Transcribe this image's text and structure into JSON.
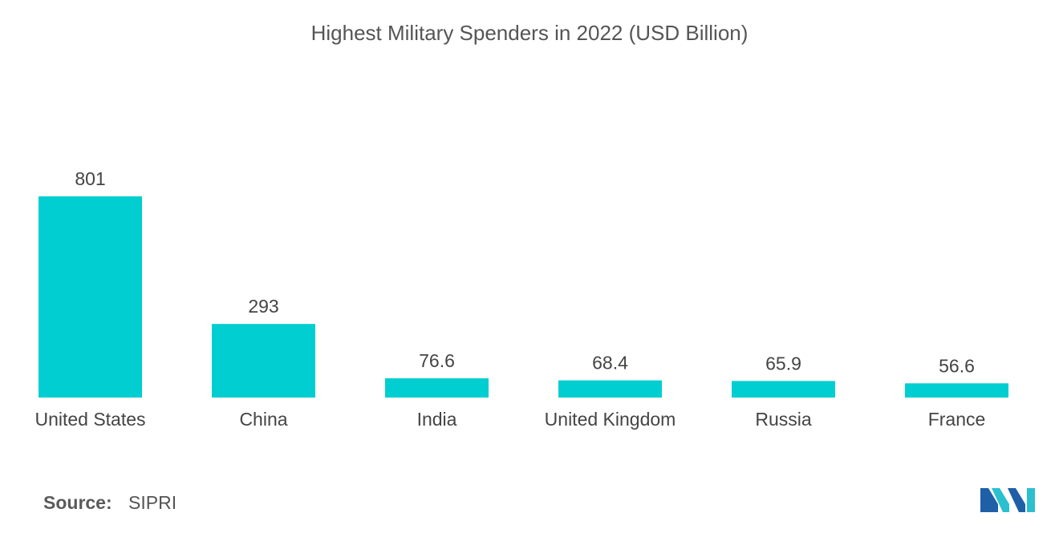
{
  "chart_data": {
    "type": "bar",
    "title": "Highest Military Spenders in 2022 (USD Billion)",
    "categories": [
      "United States",
      "China",
      "India",
      "United Kingdom",
      "Russia",
      "France"
    ],
    "values": [
      801,
      293,
      76.6,
      68.4,
      65.9,
      56.6
    ],
    "value_labels": [
      "801",
      "293",
      "76.6",
      "68.4",
      "65.9",
      "56.6"
    ],
    "xlabel": "",
    "ylabel": "",
    "ylim": [
      0,
      801
    ],
    "grid": false,
    "legend": "none",
    "bar_color": "#00CED1"
  },
  "source": {
    "label": "Source:",
    "value": "SIPRI"
  },
  "logo": {
    "icon": "mordor-intelligence-logo-icon",
    "colors": [
      "#1F5FA8",
      "#2BC0CF"
    ]
  }
}
